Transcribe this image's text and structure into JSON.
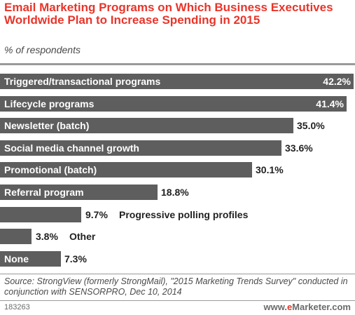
{
  "title": "Email Marketing Programs on Which Business Executives Worldwide Plan to Increase Spending in 2015",
  "subtitle": "% of respondents",
  "source": "Source: StrongView (formerly StrongMail), \"2015 Marketing Trends Survey\" conducted in conjunction with SENSORPRO, Dec 10, 2014",
  "footer_id": "183263",
  "brand_prefix": "www.",
  "brand_e": "e",
  "brand_rest": "Marketer.com",
  "colors": {
    "title": "#e8352a",
    "bar": "#5e5e5e"
  },
  "chart_data": {
    "type": "bar",
    "orientation": "horizontal",
    "title": "Email Marketing Programs on Which Business Executives Worldwide Plan to Increase Spending in 2015",
    "subtitle": "% of respondents",
    "categories": [
      "Triggered/transactional programs",
      "Lifecycle programs",
      "Newsletter (batch)",
      "Social media channel growth",
      "Promotional (batch)",
      "Referral program",
      "Progressive polling profiles",
      "Other",
      "None"
    ],
    "values": [
      42.2,
      41.4,
      35.0,
      33.6,
      30.1,
      18.8,
      9.7,
      3.8,
      7.3
    ],
    "value_labels": [
      "42.2%",
      "41.4%",
      "35.0%",
      "33.6%",
      "30.1%",
      "18.8%",
      "9.7%",
      "3.8%",
      "7.3%"
    ],
    "xlim": [
      0,
      42.2
    ],
    "grid": false,
    "legend": "none"
  }
}
